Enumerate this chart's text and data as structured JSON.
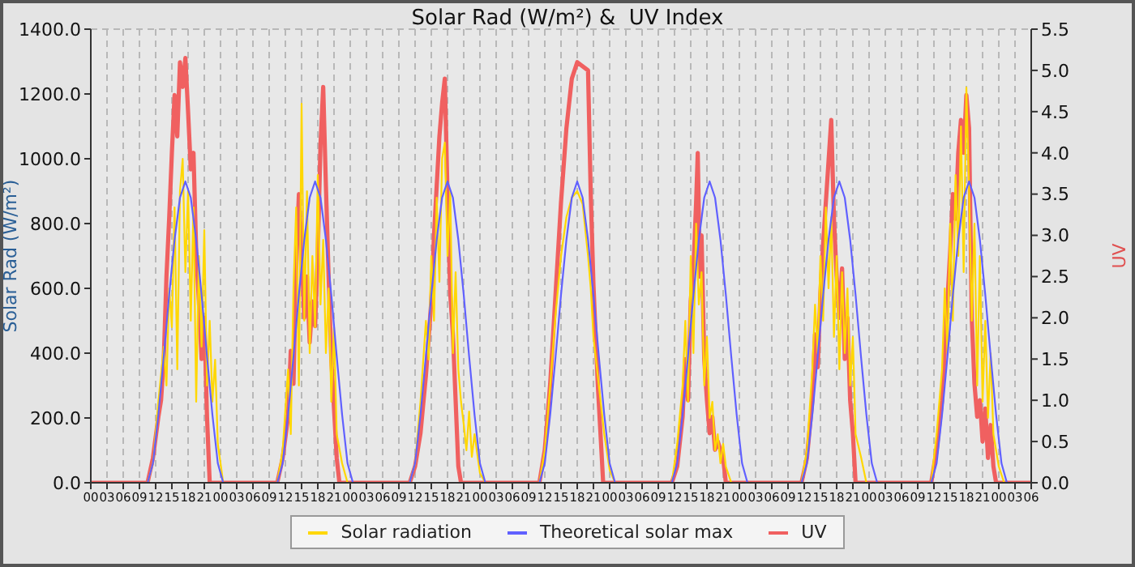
{
  "chart_data": {
    "type": "line",
    "title": "Solar Rad (W/m²) &  UV Index",
    "ylabel": "Solar Rad (W/m²)",
    "y2label": "UV",
    "xlim": [
      0,
      174
    ],
    "xticks": [
      {
        "value": 0,
        "label": "00"
      },
      {
        "value": 3,
        "label": "03"
      },
      {
        "value": 6,
        "label": "06"
      },
      {
        "value": 9,
        "label": "09"
      },
      {
        "value": 12,
        "label": "12"
      },
      {
        "value": 15,
        "label": "15"
      },
      {
        "value": 18,
        "label": "18"
      },
      {
        "value": 21,
        "label": "21"
      },
      {
        "value": 24,
        "label": "00"
      },
      {
        "value": 27,
        "label": "03"
      },
      {
        "value": 30,
        "label": "06"
      },
      {
        "value": 33,
        "label": "09"
      },
      {
        "value": 36,
        "label": "12"
      },
      {
        "value": 39,
        "label": "15"
      },
      {
        "value": 42,
        "label": "18"
      },
      {
        "value": 45,
        "label": "21"
      },
      {
        "value": 48,
        "label": "00"
      },
      {
        "value": 51,
        "label": "03"
      },
      {
        "value": 54,
        "label": "06"
      },
      {
        "value": 57,
        "label": "09"
      },
      {
        "value": 60,
        "label": "12"
      },
      {
        "value": 63,
        "label": "15"
      },
      {
        "value": 66,
        "label": "18"
      },
      {
        "value": 69,
        "label": "21"
      },
      {
        "value": 72,
        "label": "00"
      },
      {
        "value": 75,
        "label": "03"
      },
      {
        "value": 78,
        "label": "06"
      },
      {
        "value": 81,
        "label": "09"
      },
      {
        "value": 84,
        "label": "12"
      },
      {
        "value": 87,
        "label": "15"
      },
      {
        "value": 90,
        "label": "18"
      },
      {
        "value": 93,
        "label": "21"
      },
      {
        "value": 96,
        "label": "00"
      },
      {
        "value": 99,
        "label": "03"
      },
      {
        "value": 102,
        "label": "06"
      },
      {
        "value": 105,
        "label": "09"
      },
      {
        "value": 108,
        "label": "12"
      },
      {
        "value": 111,
        "label": "15"
      },
      {
        "value": 114,
        "label": "18"
      },
      {
        "value": 117,
        "label": "21"
      },
      {
        "value": 120,
        "label": "00"
      },
      {
        "value": 123,
        "label": "03"
      },
      {
        "value": 126,
        "label": "06"
      },
      {
        "value": 129,
        "label": "09"
      },
      {
        "value": 132,
        "label": "12"
      },
      {
        "value": 135,
        "label": "15"
      },
      {
        "value": 138,
        "label": "18"
      },
      {
        "value": 141,
        "label": "21"
      },
      {
        "value": 144,
        "label": "00"
      },
      {
        "value": 147,
        "label": "03"
      },
      {
        "value": 150,
        "label": "06"
      },
      {
        "value": 153,
        "label": "09"
      },
      {
        "value": 156,
        "label": "12"
      },
      {
        "value": 159,
        "label": "15"
      },
      {
        "value": 162,
        "label": "18"
      },
      {
        "value": 165,
        "label": "21"
      },
      {
        "value": 168,
        "label": "00"
      },
      {
        "value": 171,
        "label": "03"
      },
      {
        "value": 174,
        "label": "06"
      }
    ],
    "ylim": [
      0,
      1400
    ],
    "yticks": [
      {
        "value": 0,
        "label": "0.0"
      },
      {
        "value": 200,
        "label": "200.0"
      },
      {
        "value": 400,
        "label": "400.0"
      },
      {
        "value": 600,
        "label": "600.0"
      },
      {
        "value": 800,
        "label": "800.0"
      },
      {
        "value": 1000,
        "label": "1000.0"
      },
      {
        "value": 1200,
        "label": "1200.0"
      },
      {
        "value": 1400,
        "label": "1400.0"
      }
    ],
    "y2lim": [
      0,
      5.5
    ],
    "y2ticks": [
      {
        "value": 0,
        "label": "0.0"
      },
      {
        "value": 0.5,
        "label": "0.5"
      },
      {
        "value": 1,
        "label": "1.0"
      },
      {
        "value": 1.5,
        "label": "1.5"
      },
      {
        "value": 2,
        "label": "2.0"
      },
      {
        "value": 2.5,
        "label": "2.5"
      },
      {
        "value": 3,
        "label": "3.0"
      },
      {
        "value": 3.5,
        "label": "3.5"
      },
      {
        "value": 4,
        "label": "4.0"
      },
      {
        "value": 4.5,
        "label": "4.5"
      },
      {
        "value": 5,
        "label": "5.0"
      },
      {
        "value": 5.5,
        "label": "5.5"
      }
    ],
    "grid": true,
    "legend": "bottom",
    "marker": "none",
    "line_style": "solid",
    "series": [
      {
        "name": "Solar radiation",
        "color": "#ffd700",
        "x": [
          0,
          10.5,
          11.5,
          12.5,
          13.5,
          14,
          14.5,
          15,
          15.5,
          16,
          16.5,
          17,
          17.5,
          18,
          18.5,
          19,
          19.5,
          20,
          20.5,
          21,
          21.5,
          22,
          22.5,
          23,
          23.5,
          24.5,
          34.5,
          35.5,
          36.5,
          37,
          37.5,
          38,
          38.5,
          39,
          39.5,
          40,
          40.5,
          41,
          41.5,
          42,
          42.5,
          43,
          43.5,
          44,
          44.5,
          45,
          45.5,
          46.5,
          47.5,
          59,
          60,
          61,
          62,
          62.5,
          63,
          63.5,
          64,
          64.5,
          65,
          65.5,
          66,
          66.5,
          67,
          67.5,
          68,
          68.5,
          69,
          69.5,
          70,
          70.5,
          71,
          72,
          73,
          83,
          84,
          85,
          86,
          87,
          88,
          89,
          90,
          91,
          92,
          92.5,
          93,
          94,
          95,
          96,
          97,
          107.5,
          108.5,
          109.5,
          110,
          110.5,
          111,
          111.5,
          112,
          112.5,
          113,
          113.5,
          114,
          114.5,
          115,
          115.5,
          116,
          116.5,
          117,
          117.5,
          118.5,
          131.5,
          132.5,
          133.5,
          134,
          134.5,
          135,
          135.5,
          136,
          136.5,
          137,
          137.5,
          138,
          138.5,
          139,
          139.5,
          140,
          140.5,
          141,
          141.5,
          142.5,
          143.5,
          155.5,
          156.5,
          157.5,
          158,
          158.5,
          159,
          159.5,
          160,
          160.5,
          161,
          161.5,
          162,
          162.5,
          163,
          163.5,
          164,
          164.5,
          165,
          165.5,
          166,
          166.5,
          167,
          168,
          169,
          174
        ],
        "values": [
          0,
          0,
          60,
          250,
          420,
          300,
          600,
          480,
          850,
          350,
          900,
          1000,
          650,
          900,
          500,
          850,
          250,
          700,
          420,
          780,
          300,
          500,
          250,
          380,
          120,
          0,
          0,
          100,
          350,
          150,
          600,
          850,
          300,
          1170,
          500,
          900,
          400,
          700,
          480,
          950,
          550,
          750,
          400,
          600,
          250,
          480,
          150,
          60,
          0,
          0,
          60,
          250,
          500,
          380,
          700,
          500,
          880,
          620,
          1000,
          1050,
          700,
          900,
          400,
          650,
          350,
          250,
          180,
          100,
          220,
          80,
          150,
          30,
          0,
          0,
          100,
          300,
          520,
          700,
          820,
          880,
          900,
          860,
          700,
          600,
          450,
          300,
          150,
          40,
          0,
          0,
          120,
          300,
          500,
          250,
          700,
          400,
          800,
          550,
          650,
          300,
          450,
          200,
          250,
          100,
          150,
          60,
          120,
          50,
          0,
          0,
          100,
          350,
          550,
          400,
          700,
          500,
          850,
          600,
          820,
          450,
          700,
          350,
          650,
          400,
          600,
          300,
          450,
          150,
          80,
          0,
          0,
          150,
          350,
          600,
          400,
          800,
          500,
          950,
          700,
          1100,
          650,
          1220,
          900,
          500,
          800,
          300,
          700,
          250,
          500,
          200,
          400,
          150,
          50,
          0,
          0
        ]
      },
      {
        "name": "Theoretical solar max",
        "color": "#6060ff",
        "x": [
          0,
          10.5,
          11.5,
          12.5,
          13.5,
          14.5,
          15.5,
          16.5,
          17.5,
          18.5,
          19.5,
          20.5,
          21.5,
          22.5,
          23.5,
          24.5,
          34.5,
          35.5,
          36.5,
          37.5,
          38.5,
          39.5,
          40.5,
          41.5,
          42.5,
          43.5,
          44.5,
          45.5,
          46.5,
          47.5,
          48.5,
          59,
          60,
          61,
          62,
          63,
          64,
          65,
          66,
          67,
          68,
          69,
          70,
          71,
          72,
          73,
          83,
          84,
          85,
          86,
          87,
          88,
          89,
          90,
          91,
          92,
          93,
          94,
          95,
          96,
          97,
          107.5,
          108.5,
          109.5,
          110.5,
          111.5,
          112.5,
          113.5,
          114.5,
          115.5,
          116.5,
          117.5,
          118.5,
          119.5,
          120.5,
          121.5,
          131.5,
          132.5,
          133.5,
          134.5,
          135.5,
          136.5,
          137.5,
          138.5,
          139.5,
          140.5,
          141.5,
          142.5,
          143.5,
          144.5,
          145.5,
          155.5,
          156.5,
          157.5,
          158.5,
          159.5,
          160.5,
          161.5,
          162.5,
          163.5,
          164.5,
          165.5,
          166.5,
          167.5,
          168.5,
          169.5,
          174
        ],
        "values": [
          0,
          0,
          60,
          210,
          390,
          580,
          750,
          880,
          930,
          880,
          750,
          580,
          390,
          210,
          60,
          0,
          0,
          60,
          210,
          390,
          580,
          750,
          880,
          930,
          880,
          750,
          580,
          390,
          210,
          60,
          0,
          0,
          60,
          210,
          390,
          580,
          750,
          880,
          930,
          880,
          750,
          580,
          390,
          210,
          60,
          0,
          0,
          60,
          210,
          390,
          580,
          750,
          880,
          930,
          880,
          750,
          580,
          390,
          210,
          60,
          0,
          0,
          60,
          210,
          390,
          580,
          750,
          880,
          930,
          880,
          750,
          580,
          390,
          210,
          60,
          0,
          0,
          60,
          210,
          390,
          580,
          750,
          880,
          930,
          880,
          750,
          580,
          390,
          210,
          60,
          0,
          0,
          60,
          210,
          390,
          580,
          750,
          880,
          930,
          880,
          750,
          580,
          390,
          210,
          60,
          0,
          0
        ]
      },
      {
        "name": "UV",
        "color": "#f06060",
        "axis": "y2",
        "x": [
          0,
          10.5,
          11.5,
          12.5,
          13,
          13.5,
          14,
          14.5,
          15,
          15.5,
          16,
          16.5,
          17,
          17.5,
          18,
          18.5,
          19,
          19.5,
          20,
          20.5,
          21,
          21.5,
          22,
          24.5,
          34.5,
          35.5,
          36.5,
          37,
          37.5,
          38,
          38.5,
          39,
          39.5,
          40,
          40.5,
          41,
          41.5,
          42,
          42.5,
          43,
          43.5,
          44,
          44.5,
          45,
          45.5,
          46,
          47.5,
          59,
          60,
          61,
          62,
          63,
          63.5,
          64,
          64.5,
          65,
          65.5,
          66,
          66.5,
          67,
          67.5,
          68,
          68.5,
          73,
          83,
          84,
          85,
          86,
          87,
          88,
          89,
          90,
          91,
          92,
          92.5,
          93,
          93.8,
          94.8,
          97,
          107.5,
          108.5,
          109.5,
          110,
          110.5,
          111,
          111.5,
          112,
          112.3,
          112.7,
          113,
          113.5,
          114,
          114.5,
          115,
          115.5,
          116,
          117,
          117.5,
          118.5,
          131.5,
          132.5,
          133.5,
          134,
          134.5,
          135,
          135.5,
          136,
          136.5,
          137,
          137.5,
          138,
          138.5,
          139,
          139.5,
          140,
          140.5,
          141,
          141.5,
          143.5,
          155.5,
          156.5,
          157.5,
          158,
          158.5,
          159,
          159.5,
          160,
          160.5,
          161,
          161.5,
          162,
          162.5,
          163,
          163.5,
          164,
          164.5,
          165,
          165.5,
          166,
          166.5,
          167,
          167.5,
          169,
          174
        ],
        "values": [
          0,
          0,
          0.3,
          0.8,
          1,
          1.5,
          2.5,
          3.2,
          4,
          4.7,
          4.2,
          5.1,
          4.8,
          5.15,
          4.5,
          3.8,
          4,
          2.8,
          2.2,
          1.5,
          2,
          0.8,
          0,
          0,
          0,
          0.3,
          0.8,
          1.6,
          1.2,
          2.6,
          3.5,
          2.8,
          2,
          2.5,
          1.7,
          2.2,
          1.9,
          2.8,
          4.1,
          4.8,
          3.6,
          2.5,
          1.5,
          0.9,
          0.3,
          0,
          0,
          0,
          0.2,
          0.6,
          1.3,
          2.2,
          3,
          3.6,
          4.2,
          4.6,
          4.9,
          3.5,
          2.3,
          1.8,
          1,
          0.2,
          0,
          0,
          0,
          0.4,
          1.2,
          2.3,
          3.4,
          4.3,
          4.9,
          5.1,
          5.05,
          5,
          3.5,
          2.4,
          1.2,
          0,
          0,
          0,
          0.2,
          0.8,
          1.5,
          1,
          2.2,
          2.6,
          3.4,
          4,
          2.5,
          3,
          1.5,
          1,
          0.6,
          0.8,
          0.4,
          0.5,
          0.3,
          0,
          0,
          0,
          0.3,
          1,
          1.8,
          1.4,
          2.3,
          2.9,
          3.4,
          3.9,
          4.4,
          3.2,
          2.5,
          2,
          2.6,
          1.5,
          2,
          1,
          0.6,
          0,
          0,
          0,
          0.4,
          1,
          1.6,
          2.2,
          2.8,
          3.5,
          3.2,
          4,
          4.4,
          4,
          4.7,
          4.3,
          2,
          1.2,
          0.8,
          1,
          0.5,
          0.9,
          0.3,
          0.7,
          0.2,
          0,
          0,
          0
        ]
      }
    ]
  }
}
